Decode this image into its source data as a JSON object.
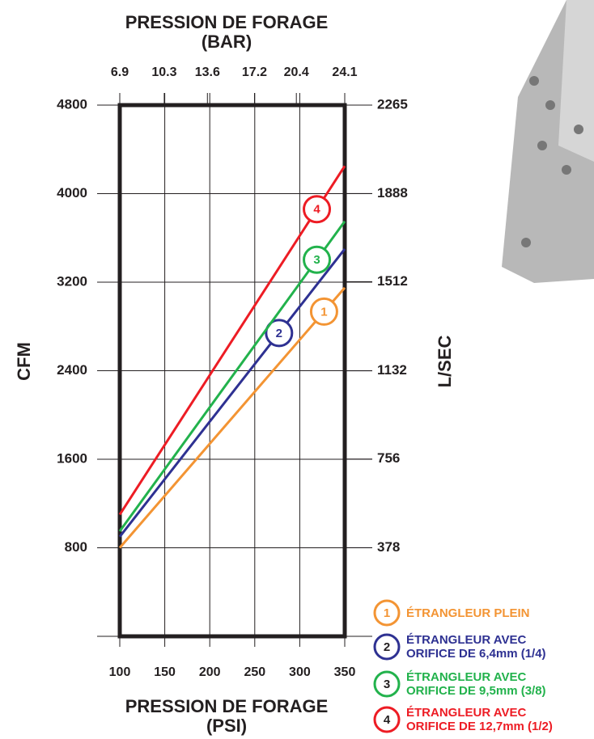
{
  "chart_data": {
    "type": "line",
    "x_label": "PRESSION DE FORAGE\n(PSI)",
    "x2_label": "PRESSION DE FORAGE\n(BAR)",
    "y_label": "CFM",
    "y2_label": "L/SEC",
    "x": [
      100,
      350
    ],
    "xlim": [
      100,
      350
    ],
    "xticks": [
      100,
      150,
      200,
      250,
      300,
      350
    ],
    "x2lim": [
      6.9,
      24.1
    ],
    "x2ticks": [
      6.9,
      10.3,
      13.6,
      17.2,
      20.4,
      24.1
    ],
    "ylim": [
      0,
      4800
    ],
    "yticks": [
      800,
      1600,
      2400,
      3200,
      4000,
      4800
    ],
    "y2lim": [
      0,
      2265
    ],
    "y2ticks": [
      378,
      756,
      1132,
      1512,
      1888,
      2265
    ],
    "grid": true,
    "series": [
      {
        "label": "1",
        "name": "ÉTRANGLEUR PLEIN",
        "color": "#f39433",
        "values": [
          800,
          3150
        ]
      },
      {
        "label": "2",
        "name": "ÉTRANGLEUR AVEC\nORIFICE DE 6,4mm (1/4)",
        "color": "#2e3192",
        "values": [
          900,
          3500
        ]
      },
      {
        "label": "3",
        "name": "ÉTRANGLEUR AVEC\nORIFICE DE 9,5mm (3/8)",
        "color": "#22b24c",
        "values": [
          950,
          3750
        ]
      },
      {
        "label": "4",
        "name": "ÉTRANGLEUR AVEC\nORIFICE DE 12,7mm (1/2)",
        "color": "#ed1c24",
        "values": [
          1100,
          4250
        ]
      }
    ]
  }
}
